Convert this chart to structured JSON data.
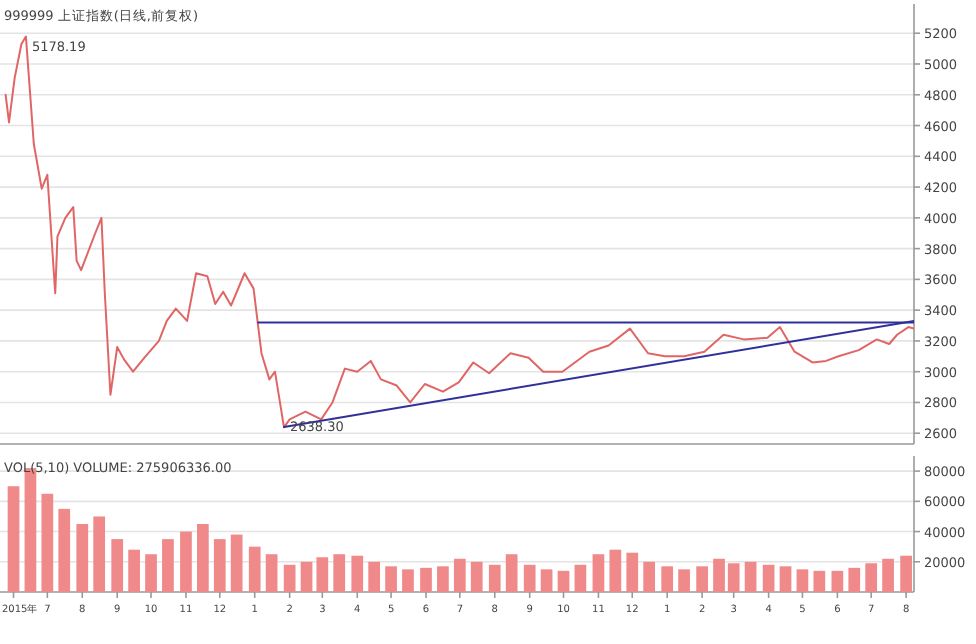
{
  "chart_data": [
    {
      "type": "line",
      "xlim": [
        "2015-05-20",
        "2017-08-08"
      ],
      "ylim": [
        2530,
        5390
      ],
      "yticks": [
        2600,
        2800,
        3000,
        3200,
        3400,
        3600,
        3800,
        4000,
        4200,
        4400,
        4600,
        4800,
        5000,
        5200
      ],
      "grid": "y",
      "tick_labels": "y",
      "annotations": [
        "999999 上证指数(日线,前复权)",
        {
          "text": "5178.19",
          "x": "2015-06-12",
          "y": 5178.19
        },
        {
          "text": "2638.30",
          "x": "2016-01-27",
          "y": 2638.3
        }
      ],
      "series": [
        {
          "color": "#e06666",
          "x": [
            "2015-05-25",
            "2015-05-28",
            "2015-06-02",
            "2015-06-08",
            "2015-06-12",
            "2015-06-19",
            "2015-06-26",
            "2015-07-01",
            "2015-07-08",
            "2015-07-10",
            "2015-07-17",
            "2015-07-24",
            "2015-07-27",
            "2015-07-31",
            "2015-08-12",
            "2015-08-18",
            "2015-08-21",
            "2015-08-26",
            "2015-09-01",
            "2015-09-07",
            "2015-09-15",
            "2015-09-25",
            "2015-10-08",
            "2015-10-15",
            "2015-10-23",
            "2015-11-02",
            "2015-11-10",
            "2015-11-20",
            "2015-11-27",
            "2015-12-04",
            "2015-12-11",
            "2015-12-23",
            "2015-12-31",
            "2016-01-04",
            "2016-01-07",
            "2016-01-14",
            "2016-01-19",
            "2016-01-27",
            "2016-02-01",
            "2016-02-15",
            "2016-02-29",
            "2016-03-10",
            "2016-03-21",
            "2016-04-01",
            "2016-04-13",
            "2016-04-22",
            "2016-05-06",
            "2016-05-18",
            "2016-05-31",
            "2016-06-16",
            "2016-06-30",
            "2016-07-13",
            "2016-07-27",
            "2016-08-15",
            "2016-08-31",
            "2016-09-13",
            "2016-09-30",
            "2016-10-24",
            "2016-11-10",
            "2016-11-29",
            "2016-12-15",
            "2016-12-30",
            "2017-01-16",
            "2017-02-03",
            "2017-02-20",
            "2017-03-10",
            "2017-03-31",
            "2017-04-11",
            "2017-04-24",
            "2017-05-10",
            "2017-05-22",
            "2017-06-02",
            "2017-06-20",
            "2017-07-06",
            "2017-07-17",
            "2017-07-24",
            "2017-08-03",
            "2017-08-08"
          ],
          "values": [
            4800,
            4620,
            4910,
            5130,
            5178.19,
            4480,
            4190,
            4280,
            3510,
            3880,
            4000,
            4070,
            3720,
            3660,
            3890,
            4000,
            3510,
            2850,
            3160,
            3080,
            3000,
            3090,
            3200,
            3330,
            3410,
            3330,
            3640,
            3620,
            3440,
            3520,
            3430,
            3640,
            3540,
            3300,
            3120,
            2950,
            3000,
            2638.3,
            2690,
            2740,
            2690,
            2800,
            3020,
            3000,
            3070,
            2950,
            2910,
            2800,
            2920,
            2870,
            2930,
            3060,
            2990,
            3120,
            3090,
            3000,
            3000,
            3130,
            3170,
            3280,
            3120,
            3100,
            3100,
            3130,
            3240,
            3210,
            3220,
            3290,
            3130,
            3060,
            3070,
            3100,
            3140,
            3210,
            3180,
            3240,
            3290,
            3280
          ]
        },
        {
          "color": "#30309a",
          "x": [
            "2016-01-04",
            "2017-08-08"
          ],
          "values": [
            3320,
            3320
          ]
        },
        {
          "color": "#30309a",
          "x": [
            "2016-01-27",
            "2017-08-08"
          ],
          "values": [
            2640,
            3330
          ]
        }
      ]
    },
    {
      "type": "bar",
      "xlim": [
        "2015-05-20",
        "2017-08-08"
      ],
      "ylim": [
        0,
        90000
      ],
      "yticks": [
        20000,
        40000,
        60000,
        80000
      ],
      "grid": "y",
      "xticks": [
        {
          "value": "2015-06-01",
          "label": "2015年"
        },
        {
          "value": "2015-07-01",
          "label": "7"
        },
        {
          "value": "2015-08-01",
          "label": "8"
        },
        {
          "value": "2015-09-01",
          "label": "9"
        },
        {
          "value": "2015-10-01",
          "label": "10"
        },
        {
          "value": "2015-11-01",
          "label": "11"
        },
        {
          "value": "2015-12-01",
          "label": "12"
        },
        {
          "value": "2016-01-01",
          "label": "1"
        },
        {
          "value": "2016-02-01",
          "label": "2"
        },
        {
          "value": "2016-03-01",
          "label": "3"
        },
        {
          "value": "2016-04-01",
          "label": "4"
        },
        {
          "value": "2016-05-01",
          "label": "5"
        },
        {
          "value": "2016-06-01",
          "label": "6"
        },
        {
          "value": "2016-07-01",
          "label": "7"
        },
        {
          "value": "2016-08-01",
          "label": "8"
        },
        {
          "value": "2016-09-01",
          "label": "9"
        },
        {
          "value": "2016-10-01",
          "label": "10"
        },
        {
          "value": "2016-11-01",
          "label": "11"
        },
        {
          "value": "2016-12-01",
          "label": "12"
        },
        {
          "value": "2017-01-01",
          "label": "1"
        },
        {
          "value": "2017-02-01",
          "label": "2"
        },
        {
          "value": "2017-03-01",
          "label": "3"
        },
        {
          "value": "2017-04-01",
          "label": "4"
        },
        {
          "value": "2017-05-01",
          "label": "5"
        },
        {
          "value": "2017-06-01",
          "label": "6"
        },
        {
          "value": "2017-07-01",
          "label": "7"
        },
        {
          "value": "2017-08-01",
          "label": "8"
        }
      ],
      "annotations": [
        "VOL(5,10) VOLUME: 275906336.00"
      ],
      "series": [
        {
          "color": "#f08a8a",
          "x": [
            "2015-06-01",
            "2015-06-16",
            "2015-07-01",
            "2015-07-16",
            "2015-08-01",
            "2015-08-16",
            "2015-09-01",
            "2015-09-16",
            "2015-10-01",
            "2015-10-16",
            "2015-11-01",
            "2015-11-16",
            "2015-12-01",
            "2015-12-16",
            "2016-01-01",
            "2016-01-16",
            "2016-02-01",
            "2016-02-16",
            "2016-03-01",
            "2016-03-16",
            "2016-04-01",
            "2016-04-16",
            "2016-05-01",
            "2016-05-16",
            "2016-06-01",
            "2016-06-16",
            "2016-07-01",
            "2016-07-16",
            "2016-08-01",
            "2016-08-16",
            "2016-09-01",
            "2016-09-16",
            "2016-10-01",
            "2016-10-16",
            "2016-11-01",
            "2016-11-16",
            "2016-12-01",
            "2016-12-16",
            "2017-01-01",
            "2017-01-16",
            "2017-02-01",
            "2017-02-16",
            "2017-03-01",
            "2017-03-16",
            "2017-04-01",
            "2017-04-16",
            "2017-05-01",
            "2017-05-16",
            "2017-06-01",
            "2017-06-16",
            "2017-07-01",
            "2017-07-16",
            "2017-08-01"
          ],
          "values": [
            70000,
            82000,
            65000,
            55000,
            45000,
            50000,
            35000,
            28000,
            25000,
            35000,
            40000,
            45000,
            35000,
            38000,
            30000,
            25000,
            18000,
            20000,
            23000,
            25000,
            24000,
            20000,
            17000,
            15000,
            16000,
            17000,
            22000,
            20000,
            18000,
            25000,
            18000,
            15000,
            14000,
            18000,
            25000,
            28000,
            26000,
            20000,
            17000,
            15000,
            17000,
            22000,
            19000,
            20000,
            18000,
            17000,
            15000,
            14000,
            14000,
            16000,
            19000,
            22000,
            24000
          ]
        }
      ]
    }
  ]
}
